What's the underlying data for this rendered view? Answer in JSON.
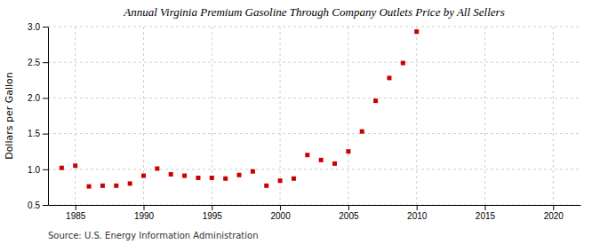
{
  "chart_data": {
    "type": "scatter",
    "title": "Annual Virginia Premium Gasoline Through Company Outlets Price by All Sellers",
    "ylabel": "Dollars per Gallon",
    "annotations": [
      "Source: U.S. Energy Information Administration"
    ],
    "x": [
      1984,
      1985,
      1986,
      1987,
      1988,
      1989,
      1990,
      1991,
      1992,
      1993,
      1994,
      1995,
      1996,
      1997,
      1998,
      1999,
      2000,
      2001,
      2002,
      2003,
      2004,
      2005,
      2006,
      2007,
      2008,
      2009,
      2010
    ],
    "values": [
      1.02,
      1.05,
      0.76,
      0.77,
      0.77,
      0.8,
      0.91,
      1.01,
      0.93,
      0.91,
      0.88,
      0.88,
      0.87,
      0.92,
      0.97,
      0.77,
      0.84,
      0.87,
      1.2,
      1.13,
      1.08,
      1.25,
      1.53,
      1.96,
      2.28,
      2.49,
      2.93
    ],
    "color": "#cc0000",
    "marker": "square",
    "xlim": [
      1983,
      2022
    ],
    "ylim": [
      0.5,
      3.0
    ],
    "xticks": [
      1985,
      1990,
      1995,
      2000,
      2005,
      2010,
      2015,
      2020
    ],
    "yticks": [
      0.5,
      {
        "value": 1.0,
        "label": "1.0"
      },
      1.5,
      {
        "value": 2.0,
        "label": "2.0"
      },
      2.5,
      {
        "value": 3.0,
        "label": "3.0"
      }
    ],
    "grid": true
  }
}
